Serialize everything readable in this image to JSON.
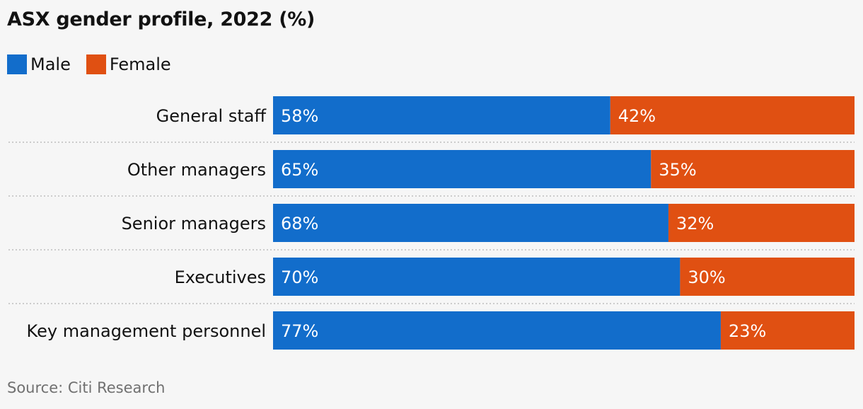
{
  "chart_data": {
    "type": "bar",
    "orientation": "horizontal",
    "stacked": true,
    "title": "ASX gender profile, 2022 (%)",
    "categories": [
      "General staff",
      "Other managers",
      "Senior managers",
      "Executives",
      "Key management personnel"
    ],
    "series": [
      {
        "name": "Male",
        "color": "#126dcb",
        "values": [
          58,
          65,
          68,
          70,
          77
        ]
      },
      {
        "name": "Female",
        "color": "#e05012",
        "values": [
          42,
          35,
          32,
          30,
          23
        ]
      }
    ],
    "value_suffix": "%",
    "xlim": [
      0,
      100
    ],
    "legend_position": "top-left",
    "source": "Source: Citi Research"
  }
}
